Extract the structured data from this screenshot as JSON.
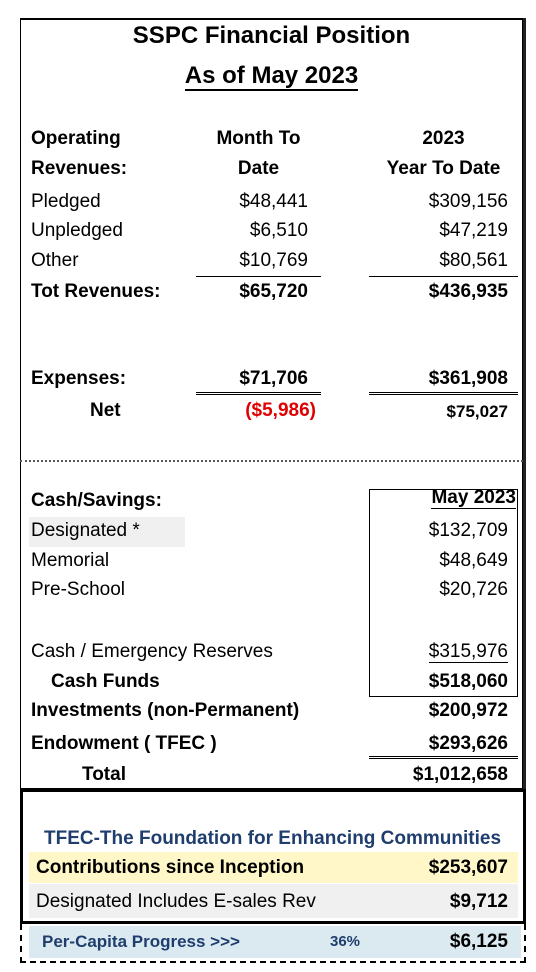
{
  "title": "SSPC Financial Position",
  "subtitle": "As of May 2023",
  "operating": {
    "label_line1": "Operating",
    "label_line2": "Revenues:",
    "col_mtd_line1": "Month To",
    "col_mtd_line2": "Date",
    "col_ytd_line1": "2023",
    "col_ytd_line2": "Year To Date",
    "rows": [
      {
        "label": "Pledged",
        "mtd": "$48,441",
        "ytd": "$309,156"
      },
      {
        "label": "Unpledged",
        "mtd": "$6,510",
        "ytd": "$47,219"
      },
      {
        "label": "Other",
        "mtd": "$10,769",
        "ytd": "$80,561"
      }
    ],
    "total": {
      "label": "Tot Revenues:",
      "mtd": "$65,720",
      "ytd": "$436,935"
    }
  },
  "expenses": {
    "label": "Expenses:",
    "mtd": "$71,706",
    "ytd": "$361,908"
  },
  "net": {
    "label": "Net",
    "mtd": "($5,986)",
    "ytd": "$75,027"
  },
  "cash": {
    "label": "Cash/Savings:",
    "column_header": "May 2023",
    "rows": [
      {
        "label": "Designated *",
        "value": "$132,709"
      },
      {
        "label": "Memorial",
        "value": "$48,649"
      },
      {
        "label": "Pre-School",
        "value": "$20,726"
      }
    ],
    "reserves": {
      "label": "Cash / Emergency Reserves",
      "value": "$315,976"
    },
    "funds": {
      "label": "Cash Funds",
      "value": "$518,060"
    }
  },
  "investments": {
    "label": "Investments (non-Permanent)",
    "value": "$200,972"
  },
  "endowment": {
    "label": "Endowment ( TFEC )",
    "value": "$293,626"
  },
  "total": {
    "label": "Total",
    "value": "$1,012,658"
  },
  "tfec": {
    "title": "TFEC-The Foundation for Enhancing Communities",
    "contributions": {
      "label": "Contributions since Inception",
      "value": "$253,607"
    },
    "designated": {
      "label": "Designated Includes E-sales Rev",
      "value": "$9,712"
    }
  },
  "per_capita": {
    "label": "Per-Capita Progress >>>",
    "percent": "36%",
    "value": "$6,125"
  },
  "colors": {
    "negative": "#e00000",
    "tfec_title": "#1f3e6e",
    "highlight_yellow": "#fff7c8",
    "highlight_grey": "#f0f0f0",
    "highlight_blue": "#dbeaf0"
  }
}
